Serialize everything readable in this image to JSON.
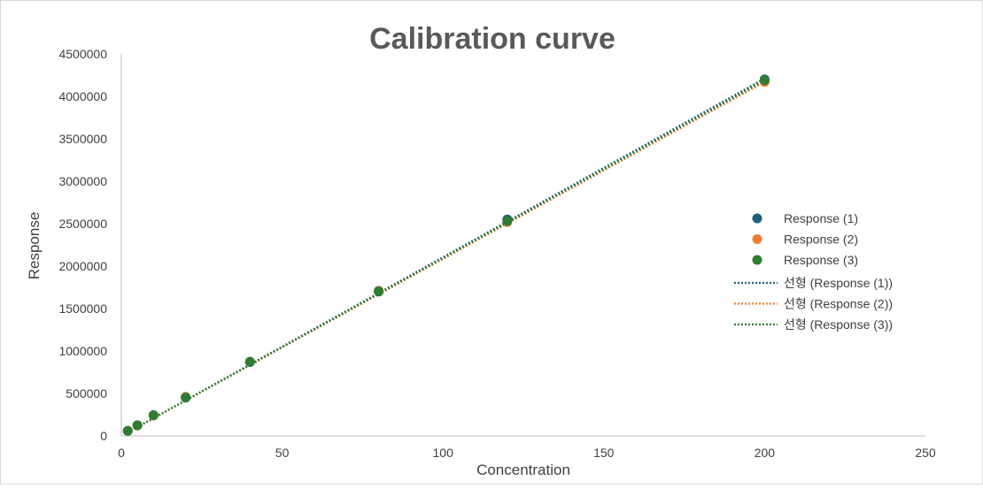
{
  "chart_data": {
    "type": "scatter",
    "title": "Calibration curve",
    "xlabel": "Concentration",
    "ylabel": "Response",
    "xlim": [
      0,
      250
    ],
    "ylim": [
      0,
      4500000
    ],
    "x_ticks": [
      "0",
      "50",
      "100",
      "150",
      "200",
      "250"
    ],
    "y_ticks": [
      "0",
      "500000",
      "1000000",
      "1500000",
      "2000000",
      "2500000",
      "3000000",
      "3500000",
      "4000000",
      "4500000"
    ],
    "grid": false,
    "legend_position": "right",
    "series": [
      {
        "name": "Response (1)",
        "color": "#1f5f7a",
        "x": [
          2,
          5,
          10,
          20,
          40,
          80,
          120,
          200
        ],
        "y": [
          60000,
          125000,
          245000,
          450000,
          870000,
          1700000,
          2550000,
          4200000
        ]
      },
      {
        "name": "Response (2)",
        "color": "#ed7d31",
        "x": [
          2,
          5,
          10,
          20,
          40,
          80,
          120,
          200
        ],
        "y": [
          58000,
          122000,
          240000,
          460000,
          875000,
          1710000,
          2520000,
          4170000
        ]
      },
      {
        "name": "Response (3)",
        "color": "#2e7d32",
        "x": [
          2,
          5,
          10,
          20,
          40,
          80,
          120,
          200
        ],
        "y": [
          59000,
          124000,
          242000,
          452000,
          872000,
          1705000,
          2530000,
          4190000
        ]
      }
    ],
    "trendlines": [
      {
        "name": "선형 (Response (1))",
        "color": "#1f5f7a",
        "x": [
          2,
          200
        ],
        "y": [
          40000,
          4210000
        ]
      },
      {
        "name": "선형 (Response (2))",
        "color": "#ed7d31",
        "x": [
          2,
          200
        ],
        "y": [
          40000,
          4170000
        ]
      },
      {
        "name": "선형 (Response (3))",
        "color": "#2e7d32",
        "x": [
          2,
          200
        ],
        "y": [
          40000,
          4190000
        ]
      }
    ]
  }
}
